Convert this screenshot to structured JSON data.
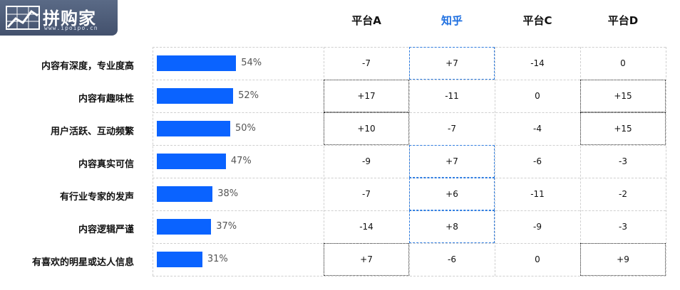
{
  "logo": {
    "brand": "拼购家",
    "url": "www.ipoipo.cn"
  },
  "colors": {
    "bar": "#0a63ff",
    "highlight_header": "#1e6fe0",
    "highlight_border": "#2f7de1"
  },
  "chart_data": {
    "type": "bar",
    "categories": [
      "内容有深度，专业度高",
      "内容有趣味性",
      "用户活跃、互动频繁",
      "内容真实可信",
      "有行业专家的发声",
      "内容逻辑严谨",
      "有喜欢的明星或达人信息"
    ],
    "values": [
      54,
      52,
      50,
      47,
      38,
      37,
      31
    ],
    "value_labels": [
      "54%",
      "52%",
      "50%",
      "47%",
      "38%",
      "37%",
      "31%"
    ],
    "xlim": [
      0,
      100
    ]
  },
  "table": {
    "columns": [
      "平台A",
      "知乎",
      "平台C",
      "平台D"
    ],
    "rows": [
      [
        "-7",
        "+7",
        "-14",
        "0"
      ],
      [
        "+17",
        "-11",
        "0",
        "+15"
      ],
      [
        "+10",
        "-7",
        "-4",
        "+15"
      ],
      [
        "-9",
        "+7",
        "-6",
        "-3"
      ],
      [
        "-7",
        "+6",
        "-11",
        "-2"
      ],
      [
        "-14",
        "+8",
        "-9",
        "-3"
      ],
      [
        "+7",
        "-6",
        "0",
        "+9"
      ]
    ]
  }
}
